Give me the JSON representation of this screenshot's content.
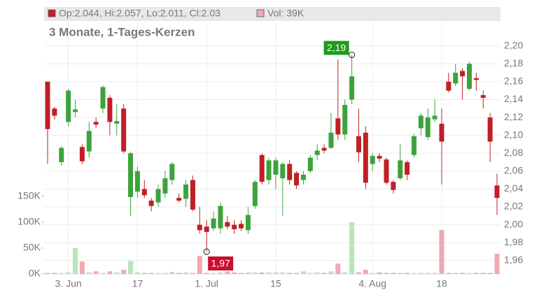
{
  "chart_data": {
    "type": "candlestick",
    "title": "3 Monate, 1-Tages-Kerzen",
    "info": {
      "ohlc": "Op:2.044, Hi:2.057, Lo:2.011, Cl:2.03",
      "volume": "Vol: 39K"
    },
    "categories": [
      null,
      null,
      null,
      "3. Jun",
      null,
      null,
      null,
      null,
      null,
      null,
      null,
      null,
      null,
      "17",
      null,
      null,
      null,
      null,
      null,
      null,
      null,
      null,
      null,
      "1. Jul",
      null,
      null,
      null,
      null,
      null,
      null,
      null,
      null,
      null,
      "15",
      null,
      null,
      null,
      null,
      null,
      null,
      null,
      null,
      null,
      null,
      null,
      null,
      null,
      "4. Aug",
      null,
      null,
      null,
      null,
      null,
      null,
      null,
      null,
      null,
      "18",
      null,
      null,
      null,
      null,
      null,
      null,
      null,
      null
    ],
    "open": [
      2.16,
      2.13,
      2.07,
      2.115,
      2.126,
      2.087,
      2.082,
      2.115,
      2.13,
      2.142,
      2.113,
      2.13,
      2.031,
      2.037,
      2.04,
      2.027,
      2.025,
      2.035,
      2.05,
      2.03,
      2.029,
      2.05,
      2.0,
      1.998,
      1.996,
      1.996,
      2.003,
      2.0,
      2.001,
      1.994,
      2.021,
      2.078,
      2.05,
      2.056,
      2.052,
      2.068,
      2.058,
      2.05,
      2.06,
      2.078,
      2.086,
      2.086,
      2.119,
      2.101,
      2.14,
      2.099,
      2.103,
      2.068,
      2.077,
      2.073,
      2.048,
      2.052,
      2.07,
      2.078,
      2.108,
      2.098,
      2.118,
      2.113,
      2.16,
      2.158,
      2.172,
      2.152,
      2.164,
      2.145,
      2.12,
      2.044
    ],
    "high": [
      2.16,
      2.132,
      2.088,
      2.152,
      2.14,
      2.09,
      2.115,
      2.12,
      2.156,
      2.145,
      2.135,
      2.135,
      2.082,
      2.065,
      2.05,
      2.03,
      2.045,
      2.06,
      2.07,
      2.035,
      2.05,
      2.055,
      2.02,
      2.005,
      2.015,
      2.025,
      2.01,
      2.005,
      2.005,
      2.02,
      2.05,
      2.08,
      2.075,
      2.075,
      2.07,
      2.072,
      2.06,
      2.06,
      2.078,
      2.09,
      2.09,
      2.125,
      2.185,
      2.14,
      2.19,
      2.13,
      2.11,
      2.08,
      2.08,
      2.075,
      2.05,
      2.09,
      2.072,
      2.102,
      2.125,
      2.13,
      2.14,
      2.13,
      2.17,
      2.18,
      2.175,
      2.182,
      2.17,
      2.15,
      2.125,
      2.057
    ],
    "low": [
      2.068,
      2.118,
      2.066,
      2.11,
      2.12,
      2.068,
      2.075,
      2.108,
      2.125,
      2.1,
      2.1,
      2.08,
      2.01,
      2.03,
      2.03,
      2.015,
      2.02,
      2.03,
      2.045,
      2.025,
      2.02,
      2.015,
      1.99,
      1.97,
      1.993,
      1.99,
      1.995,
      1.99,
      1.993,
      1.99,
      2.018,
      2.045,
      2.045,
      2.04,
      2.01,
      2.045,
      2.04,
      2.045,
      2.058,
      2.072,
      2.08,
      2.085,
      2.095,
      2.095,
      2.135,
      2.07,
      2.04,
      2.06,
      2.07,
      2.045,
      2.035,
      2.05,
      2.05,
      2.075,
      2.1,
      2.095,
      2.115,
      2.045,
      2.148,
      2.155,
      2.14,
      2.15,
      2.15,
      2.13,
      2.07,
      2.011
    ],
    "close": [
      2.107,
      2.122,
      2.086,
      2.15,
      2.129,
      2.071,
      2.105,
      2.112,
      2.154,
      2.115,
      2.116,
      2.082,
      2.08,
      2.06,
      2.033,
      2.021,
      2.04,
      2.052,
      2.068,
      2.027,
      2.045,
      2.017,
      1.994,
      1.992,
      2.007,
      2.021,
      1.998,
      1.995,
      1.996,
      2.011,
      2.048,
      2.048,
      2.072,
      2.072,
      2.068,
      2.05,
      2.044,
      2.056,
      2.075,
      2.083,
      2.083,
      2.103,
      2.101,
      2.134,
      2.166,
      2.081,
      2.047,
      2.077,
      2.074,
      2.047,
      2.039,
      2.072,
      2.056,
      2.099,
      2.122,
      2.12,
      2.122,
      2.093,
      2.15,
      2.17,
      2.166,
      2.18,
      2.162,
      2.142,
      2.093,
      2.03
    ],
    "volume": [
      2,
      2,
      2,
      3,
      50,
      24,
      3,
      5,
      2,
      5,
      3,
      8,
      25,
      3,
      2,
      2,
      2,
      2,
      4,
      2,
      3,
      2,
      35,
      2,
      2,
      3,
      5,
      3,
      2,
      3,
      3,
      3,
      3,
      3,
      3,
      2,
      2,
      5,
      2,
      3,
      2,
      5,
      20,
      3,
      100,
      3,
      8,
      2,
      3,
      2,
      2,
      2,
      2,
      2,
      2,
      2,
      2,
      85,
      2,
      2,
      2,
      2,
      2,
      2,
      2,
      39
    ],
    "up_color": "#3ca33c",
    "down_color": "#bf2026",
    "volume_up_color": "#b9e4b9",
    "volume_down_color": "#f0a9b3",
    "ylim": [
      1.945,
      2.242
    ],
    "yticks": [
      {
        "value": 1.96,
        "label": "1,96"
      },
      {
        "value": 1.98,
        "label": "1,98"
      },
      {
        "value": 2.0,
        "label": "2,00"
      },
      {
        "value": 2.02,
        "label": "2,02"
      },
      {
        "value": 2.04,
        "label": "2,04"
      },
      {
        "value": 2.06,
        "label": "2,06"
      },
      {
        "value": 2.08,
        "label": "2,08"
      },
      {
        "value": 2.1,
        "label": "2,10"
      },
      {
        "value": 2.12,
        "label": "2,12"
      },
      {
        "value": 2.14,
        "label": "2,14"
      },
      {
        "value": 2.16,
        "label": "2,16"
      },
      {
        "value": 2.18,
        "label": "2,18"
      },
      {
        "value": 2.2,
        "label": "2,20"
      }
    ],
    "y2lim": [
      0,
      513
    ],
    "y2ticks": [
      {
        "value": 0,
        "label": "0K"
      },
      {
        "value": 50,
        "label": "50K"
      },
      {
        "value": 100,
        "label": "100K"
      },
      {
        "value": 150,
        "label": "150K"
      }
    ],
    "annotations": [
      {
        "text": "2,19",
        "value": 2.19,
        "index": 44,
        "color": "#1e9a1e"
      },
      {
        "text": "1,97",
        "value": 1.97,
        "index": 23,
        "color": "#c8102e"
      }
    ],
    "grid": true
  }
}
